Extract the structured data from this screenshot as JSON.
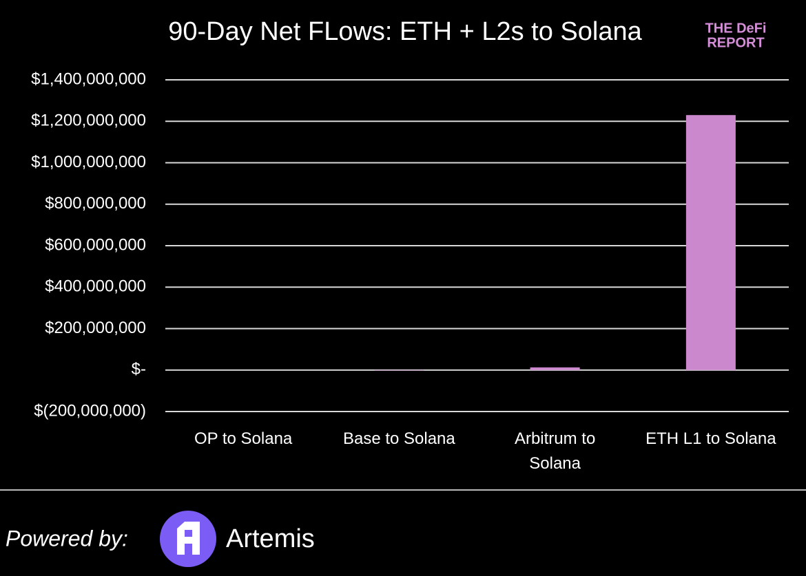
{
  "chart_data": {
    "type": "bar",
    "title": "90-Day Net FLows: ETH + L2s to Solana",
    "categories": [
      "OP to Solana",
      "Base to Solana",
      "Arbitrum to Solana",
      "ETH L1 to Solana"
    ],
    "values": [
      0,
      -2000000,
      13000000,
      1230000000
    ],
    "color": "#cc88cc",
    "ylim": [
      -200000000,
      1400000000
    ],
    "yticks": [
      {
        "value": -200000000,
        "label": "$(200,000,000)"
      },
      {
        "value": 0,
        "label": "$-"
      },
      {
        "value": 200000000,
        "label": "$200,000,000"
      },
      {
        "value": 400000000,
        "label": "$400,000,000"
      },
      {
        "value": 600000000,
        "label": "$600,000,000"
      },
      {
        "value": 800000000,
        "label": "$800,000,000"
      },
      {
        "value": 1000000000,
        "label": "$1,000,000,000"
      },
      {
        "value": 1200000000,
        "label": "$1,200,000,000"
      },
      {
        "value": 1400000000,
        "label": "$1,400,000,000"
      }
    ],
    "grid": true
  },
  "branding": {
    "logo_top": "THE DeFi",
    "logo_bottom": "REPORT",
    "powered_by": "Powered by:",
    "partner": "Artemis"
  }
}
